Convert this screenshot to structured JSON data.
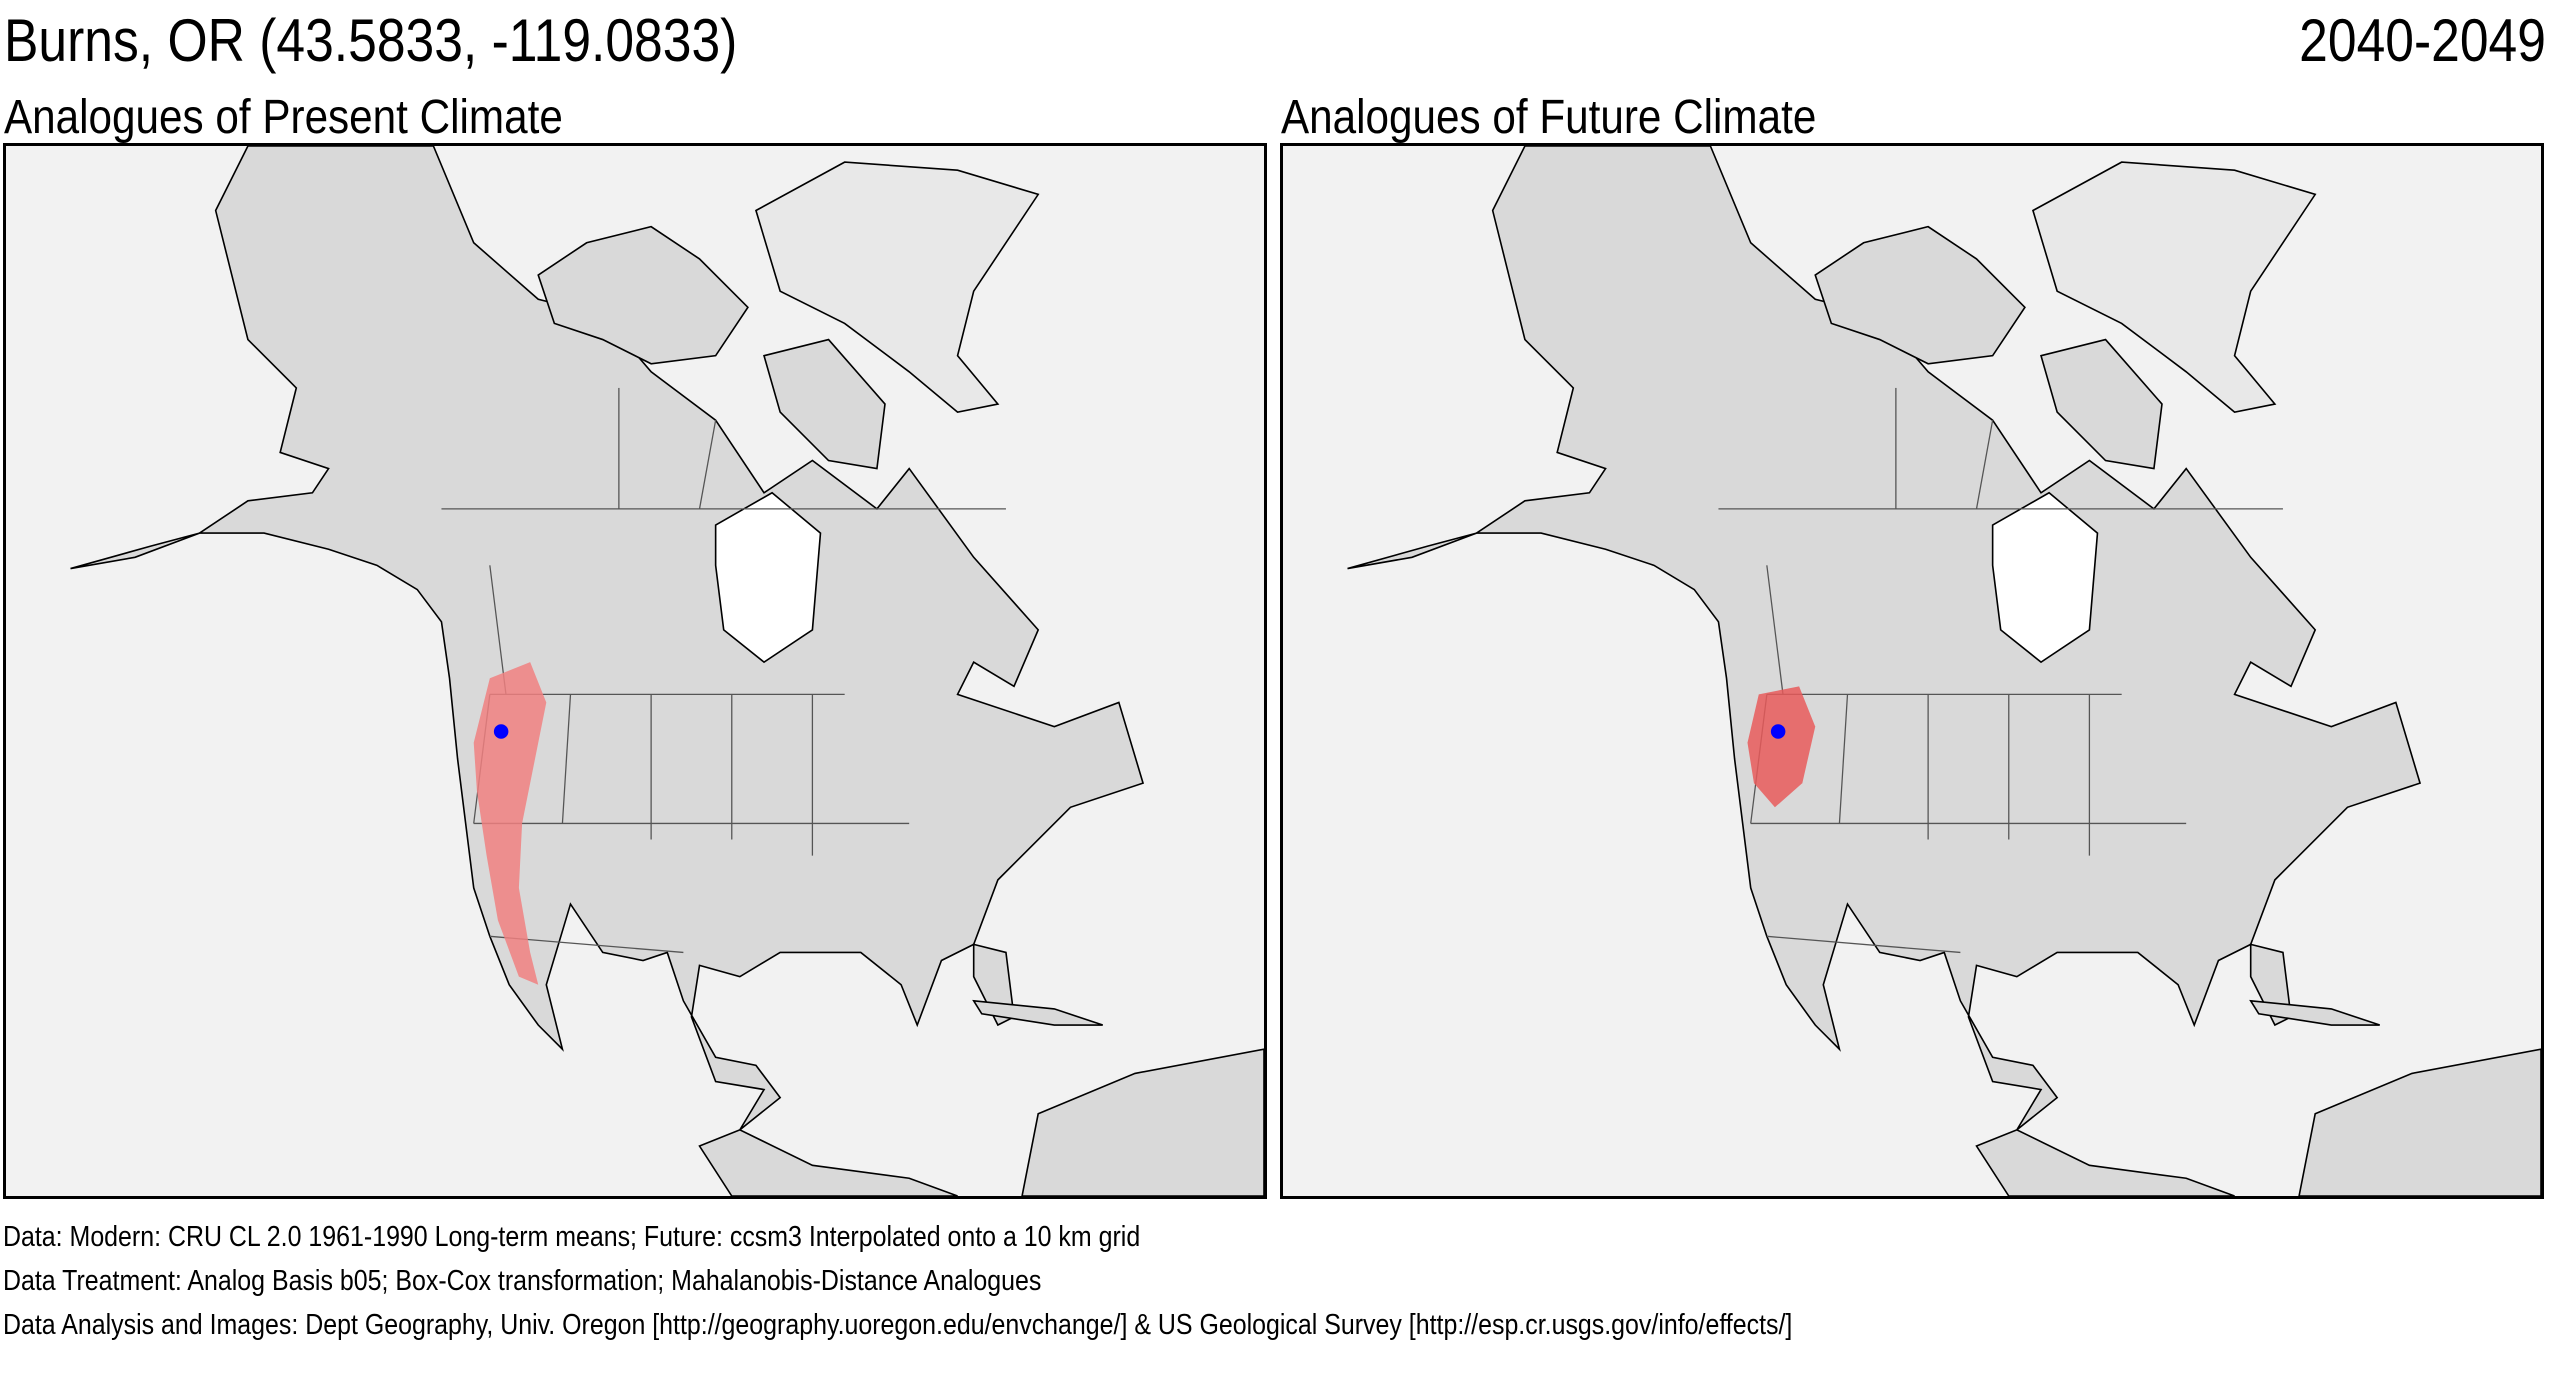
{
  "header": {
    "location_title": "Burns, OR  (43.5833, -119.0833)",
    "period": "2040-2049"
  },
  "panels": [
    {
      "title": "Analogues of Present Climate",
      "analog_color": "#f08080",
      "site_marker_color": "#0000ff"
    },
    {
      "title": "Analogues of Future Climate",
      "analog_color": "#e85a5a",
      "site_marker_color": "#0000ff"
    }
  ],
  "site": {
    "name": "Burns, OR",
    "lat": 43.5833,
    "lon": -119.0833
  },
  "colors": {
    "water": "#f2f2f2",
    "land": "#d9d9d9",
    "boundaries": "#555555",
    "analog": "#f08080",
    "site": "#0000ff"
  },
  "footer": {
    "data": "Data:  Modern: CRU CL 2.0 1961-1990 Long-term means; Future: ccsm3 Interpolated onto a 10 km grid",
    "treatment": "Data Treatment:  Analog Basis b05; Box-Cox transformation; Mahalanobis-Distance Analogues",
    "credits": "Data Analysis and Images:  Dept Geography, Univ. Oregon [http://geography.uoregon.edu/envchange/] & US Geological Survey [http://esp.cr.usgs.gov/info/effects/]"
  }
}
